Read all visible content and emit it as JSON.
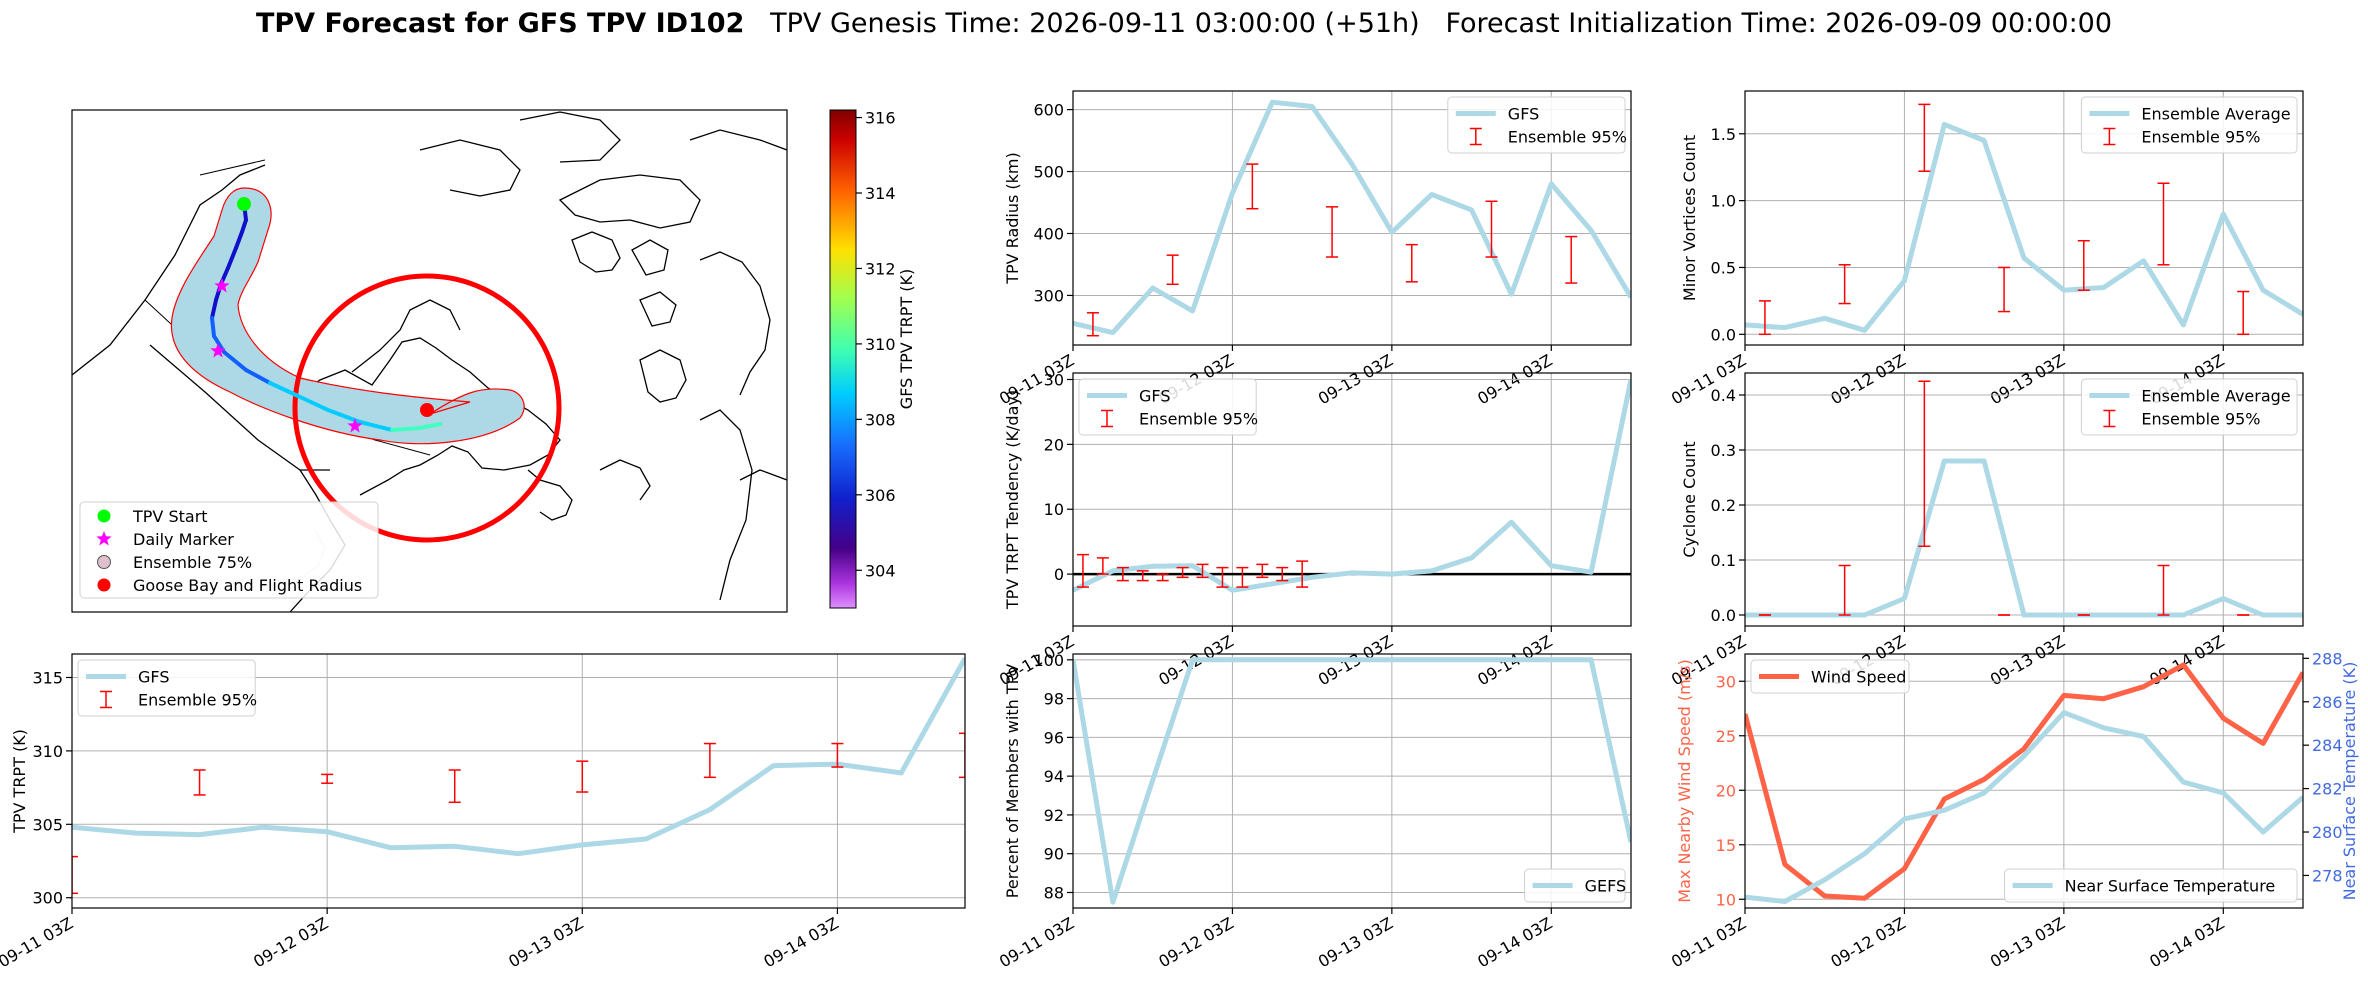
{
  "title": {
    "bold": "TPV Forecast for GFS TPV ID102",
    "genesis": "TPV Genesis Time: 2026-09-11 03:00:00 (+51h)",
    "init": "Forecast Initialization Time: 2026-09-09 00:00:00"
  },
  "map": {
    "legend": [
      "TPV Start",
      "Daily Marker",
      "Ensemble 75%",
      "Goose Bay and Flight Radius"
    ],
    "colorbar_label": "GFS TPV TRPT (K)",
    "colorbar_ticks": [
      304,
      306,
      308,
      310,
      312,
      314,
      316
    ],
    "colorbar_range": [
      303,
      316.2
    ],
    "track_trpt": [
      305.2,
      305.1,
      304.9,
      304.7,
      304.6,
      304.9,
      305.4,
      305.7,
      306.1,
      306.6,
      307.1,
      307.6,
      307.9,
      308.1,
      308.3,
      308.6
    ]
  },
  "colors": {
    "series": "#add8e6",
    "error": "#ff0000",
    "wind": "#ff6347",
    "temp_axis": "#4169e1",
    "zero_line": "#000000",
    "tpv_start": "#00ff00",
    "daily_marker": "#ff00ff",
    "goose_bay": "#ff0000"
  },
  "x_ticks": [
    "09-11 03Z",
    "09-12 03Z",
    "09-13 03Z",
    "09-14 03Z"
  ],
  "chart_data": [
    {
      "id": "radius",
      "type": "line",
      "ylabel": "TPV Radius (km)",
      "ylim": [
        220,
        630
      ],
      "yticks": [
        300,
        400,
        500,
        600
      ],
      "legend": [
        "GFS",
        "Ensemble 95%"
      ],
      "series": [
        {
          "name": "GFS",
          "x": [
            0,
            6,
            12,
            18,
            24,
            30,
            36,
            42,
            48,
            54,
            60,
            66,
            72,
            78,
            84
          ],
          "values": [
            255,
            240,
            312,
            275,
            465,
            612,
            605,
            512,
            402,
            463,
            438,
            302,
            480,
            405,
            297
          ]
        }
      ],
      "errorbars": [
        {
          "x": 3,
          "low": 235,
          "high": 272
        },
        {
          "x": 15,
          "low": 318,
          "high": 365
        },
        {
          "x": 27,
          "low": 440,
          "high": 512
        },
        {
          "x": 39,
          "low": 362,
          "high": 443
        },
        {
          "x": 51,
          "low": 322,
          "high": 382
        },
        {
          "x": 63,
          "low": 362,
          "high": 452
        },
        {
          "x": 75,
          "low": 320,
          "high": 395
        }
      ]
    },
    {
      "id": "minor",
      "type": "line",
      "ylabel": "Minor Vortices Count",
      "ylim": [
        -0.08,
        1.82
      ],
      "yticks": [
        0.0,
        0.5,
        1.0,
        1.5
      ],
      "legend": [
        "Ensemble Average",
        "Ensemble 95%"
      ],
      "series": [
        {
          "name": "Ensemble Average",
          "x": [
            0,
            6,
            12,
            18,
            24,
            30,
            36,
            42,
            48,
            54,
            60,
            66,
            72,
            78,
            84
          ],
          "values": [
            0.07,
            0.05,
            0.12,
            0.03,
            0.4,
            1.57,
            1.45,
            0.57,
            0.33,
            0.35,
            0.55,
            0.07,
            0.9,
            0.33,
            0.15
          ]
        }
      ],
      "errorbars": [
        {
          "x": 3,
          "low": 0.0,
          "high": 0.25
        },
        {
          "x": 15,
          "low": 0.23,
          "high": 0.52
        },
        {
          "x": 27,
          "low": 1.22,
          "high": 1.72
        },
        {
          "x": 39,
          "low": 0.17,
          "high": 0.5
        },
        {
          "x": 51,
          "low": 0.33,
          "high": 0.7
        },
        {
          "x": 63,
          "low": 0.52,
          "high": 1.13
        },
        {
          "x": 75,
          "low": 0.0,
          "high": 0.32
        }
      ]
    },
    {
      "id": "tendency",
      "type": "line",
      "ylabel": "TPV TRPT Tendency (K/day)",
      "ylim": [
        -8,
        31
      ],
      "yticks": [
        -10,
        0,
        10,
        20,
        30
      ],
      "hline": 0,
      "legend": [
        "GFS",
        "Ensemble 95%"
      ],
      "series": [
        {
          "name": "GFS",
          "x": [
            0,
            6,
            12,
            18,
            24,
            30,
            36,
            42,
            48,
            54,
            60,
            66,
            72,
            78,
            84
          ],
          "values": [
            -2.5,
            0.5,
            1.2,
            1.3,
            -2.5,
            -1.5,
            -0.5,
            0.2,
            0,
            0.5,
            2.5,
            8,
            1.3,
            0.3,
            30
          ]
        }
      ],
      "errorbars": [
        {
          "x": 1.5,
          "low": -2,
          "high": 3
        },
        {
          "x": 4.5,
          "low": 0,
          "high": 2.5
        },
        {
          "x": 7.5,
          "low": -1,
          "high": 1
        },
        {
          "x": 10.5,
          "low": -1,
          "high": 0.5
        },
        {
          "x": 13.5,
          "low": -1,
          "high": 0
        },
        {
          "x": 16.5,
          "low": -0.5,
          "high": 1
        },
        {
          "x": 19.5,
          "low": -0.5,
          "high": 1.5
        },
        {
          "x": 22.5,
          "low": -2,
          "high": 1
        },
        {
          "x": 25.5,
          "low": -2,
          "high": 1
        },
        {
          "x": 28.5,
          "low": -0.5,
          "high": 1.5
        },
        {
          "x": 31.5,
          "low": -1,
          "high": 1
        },
        {
          "x": 34.5,
          "low": -2,
          "high": 2
        }
      ]
    },
    {
      "id": "cyclone",
      "type": "line",
      "ylabel": "Cyclone Count",
      "ylim": [
        -0.02,
        0.44
      ],
      "yticks": [
        0.0,
        0.1,
        0.2,
        0.3,
        0.4
      ],
      "legend": [
        "Ensemble Average",
        "Ensemble 95%"
      ],
      "series": [
        {
          "name": "Ensemble Average",
          "x": [
            0,
            6,
            12,
            18,
            24,
            30,
            36,
            42,
            48,
            54,
            60,
            66,
            72,
            78,
            84
          ],
          "values": [
            0,
            0,
            0,
            0,
            0.03,
            0.28,
            0.28,
            0,
            0,
            0,
            0,
            0,
            0.03,
            0,
            0
          ]
        }
      ],
      "errorbars": [
        {
          "x": 3,
          "low": 0,
          "high": 0
        },
        {
          "x": 15,
          "low": 0,
          "high": 0.09
        },
        {
          "x": 27,
          "low": 0.125,
          "high": 0.425
        },
        {
          "x": 39,
          "low": 0,
          "high": 0
        },
        {
          "x": 51,
          "low": 0,
          "high": 0
        },
        {
          "x": 63,
          "low": 0,
          "high": 0.09
        },
        {
          "x": 75,
          "low": 0,
          "high": 0
        }
      ]
    },
    {
      "id": "trpt",
      "type": "line",
      "ylabel": "TPV TRPT (K)",
      "ylim": [
        299.3,
        316.6
      ],
      "yticks": [
        300,
        305,
        310,
        315
      ],
      "legend": [
        "GFS",
        "Ensemble 95%"
      ],
      "series": [
        {
          "name": "GFS",
          "x": [
            0,
            6,
            12,
            18,
            24,
            30,
            36,
            42,
            48,
            54,
            60,
            66,
            72,
            78,
            84
          ],
          "values": [
            304.8,
            304.4,
            304.3,
            304.8,
            304.5,
            303.4,
            303.5,
            303.0,
            303.6,
            304.0,
            306.0,
            309.0,
            309.1,
            308.5,
            316.3
          ]
        }
      ],
      "errorbars": [
        {
          "x": 0,
          "low": 300.3,
          "high": 302.8
        },
        {
          "x": 12,
          "low": 307.0,
          "high": 308.7
        },
        {
          "x": 24,
          "low": 307.8,
          "high": 308.4
        },
        {
          "x": 36,
          "low": 306.5,
          "high": 308.7
        },
        {
          "x": 48,
          "low": 307.2,
          "high": 309.3
        },
        {
          "x": 60,
          "low": 308.2,
          "high": 310.5
        },
        {
          "x": 72,
          "low": 308.9,
          "high": 310.5
        },
        {
          "x": 84,
          "low": 308.2,
          "high": 311.2
        }
      ]
    },
    {
      "id": "percent",
      "type": "line",
      "ylabel": "Percent of Members with TPV",
      "ylim": [
        87.2,
        100.3
      ],
      "yticks": [
        88,
        90,
        92,
        94,
        96,
        98,
        100
      ],
      "legend": [
        "GEFS"
      ],
      "series": [
        {
          "name": "GEFS",
          "x": [
            0,
            6,
            12,
            18,
            24,
            30,
            36,
            42,
            48,
            54,
            60,
            66,
            72,
            78,
            84
          ],
          "values": [
            100,
            87.5,
            93.8,
            100,
            100,
            100,
            100,
            100,
            100,
            100,
            100,
            100,
            100,
            100,
            90.6
          ]
        }
      ]
    },
    {
      "id": "wind-temp",
      "type": "line",
      "ylabel": "Max Nearby Wind Speed (m/s)",
      "ylim": [
        9.2,
        32.5
      ],
      "yticks": [
        10,
        15,
        20,
        25,
        30
      ],
      "y2label": "Near Surface Temperature (K)",
      "y2lim": [
        276.5,
        288.2
      ],
      "y2ticks": [
        278,
        280,
        282,
        284,
        286,
        288
      ],
      "legend": [
        "Wind Speed",
        "Near Surface Temperature"
      ],
      "series": [
        {
          "name": "Wind Speed",
          "axis": "left",
          "x": [
            0,
            6,
            12,
            18,
            24,
            30,
            36,
            42,
            48,
            54,
            60,
            66,
            72,
            78,
            84
          ],
          "values": [
            27,
            13.2,
            10.3,
            10.1,
            12.8,
            19.2,
            21,
            23.8,
            28.7,
            28.4,
            29.5,
            31.5,
            26.6,
            24.3,
            30.8
          ]
        },
        {
          "name": "Near Surface Temperature",
          "axis": "right",
          "x": [
            0,
            6,
            12,
            18,
            24,
            30,
            36,
            42,
            48,
            54,
            60,
            66,
            72,
            78,
            84
          ],
          "values": [
            277.0,
            276.8,
            277.8,
            279.0,
            280.6,
            281.0,
            281.8,
            283.5,
            285.5,
            284.8,
            284.4,
            282.3,
            281.8,
            280.0,
            281.6
          ]
        }
      ]
    }
  ]
}
